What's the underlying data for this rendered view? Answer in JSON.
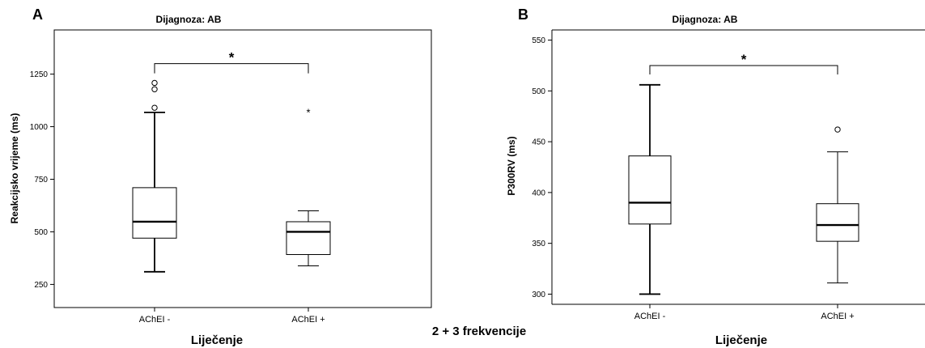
{
  "caption": "2 + 3 frekvencije",
  "chart_data": [
    {
      "type": "boxplot",
      "panel": "A",
      "title": "Dijagnoza: AB",
      "xlabel": "Liječenje",
      "ylabel": "Reakcijsko vrijeme (ms)",
      "ylim": [
        140,
        1460
      ],
      "yticks": [
        250,
        500,
        750,
        1000,
        1250
      ],
      "categories": [
        "AChEI -",
        "AChEI +"
      ],
      "boxes": [
        {
          "category": "AChEI -",
          "min": 310,
          "q1": 470,
          "median": 548,
          "q3": 710,
          "max": 1068,
          "outliers": [
            1090,
            1178,
            1208
          ],
          "extremes": []
        },
        {
          "category": "AChEI +",
          "min": 338,
          "q1": 392,
          "median": 500,
          "q3": 548,
          "max": 600,
          "outliers": [],
          "extremes": [
            1078
          ]
        }
      ],
      "significance": {
        "from": "AChEI -",
        "to": "AChEI +",
        "y": 1300,
        "label": "*"
      }
    },
    {
      "type": "boxplot",
      "panel": "B",
      "title": "Dijagnoza: AB",
      "xlabel": "Liječenje",
      "ylabel": "P300RV (ms)",
      "ylim": [
        290,
        560
      ],
      "yticks": [
        300,
        350,
        400,
        450,
        500,
        550
      ],
      "categories": [
        "AChEI -",
        "AChEI +"
      ],
      "boxes": [
        {
          "category": "AChEI -",
          "min": 300,
          "q1": 369,
          "median": 390,
          "q3": 436,
          "max": 506,
          "outliers": [],
          "extremes": []
        },
        {
          "category": "AChEI +",
          "min": 311,
          "q1": 352,
          "median": 368,
          "q3": 389,
          "max": 440,
          "outliers": [
            462
          ],
          "extremes": []
        }
      ],
      "significance": {
        "from": "AChEI -",
        "to": "AChEI +",
        "y": 525,
        "label": "*"
      }
    }
  ]
}
